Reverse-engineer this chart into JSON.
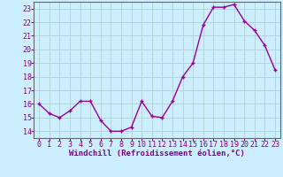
{
  "x": [
    0,
    1,
    2,
    3,
    4,
    5,
    6,
    7,
    8,
    9,
    10,
    11,
    12,
    13,
    14,
    15,
    16,
    17,
    18,
    19,
    20,
    21,
    22,
    23
  ],
  "y": [
    16.0,
    15.3,
    15.0,
    15.5,
    16.2,
    16.2,
    14.8,
    14.0,
    14.0,
    14.3,
    16.2,
    15.1,
    15.0,
    16.2,
    18.0,
    19.0,
    21.8,
    23.1,
    23.1,
    23.3,
    22.1,
    21.4,
    20.3,
    18.5
  ],
  "line_color": "#990099",
  "marker": "+",
  "marker_color": "#990099",
  "bg_color": "#cceeff",
  "grid_color": "#aacccc",
  "xlabel": "Windchill (Refroidissement éolien,°C)",
  "ylim": [
    13.5,
    23.5
  ],
  "xlim": [
    -0.5,
    23.5
  ],
  "yticks": [
    14,
    15,
    16,
    17,
    18,
    19,
    20,
    21,
    22,
    23
  ],
  "xticks": [
    0,
    1,
    2,
    3,
    4,
    5,
    6,
    7,
    8,
    9,
    10,
    11,
    12,
    13,
    14,
    15,
    16,
    17,
    18,
    19,
    20,
    21,
    22,
    23
  ],
  "xlabel_fontsize": 6.5,
  "tick_fontsize": 6,
  "line_width": 1.0,
  "marker_size": 3.5
}
